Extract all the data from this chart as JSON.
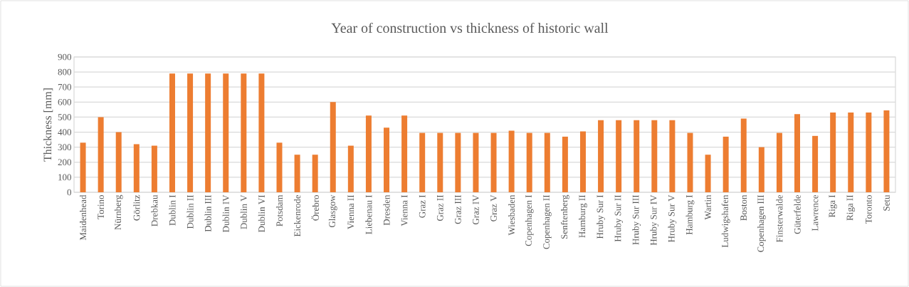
{
  "chart_data": {
    "type": "bar",
    "title": "Year of construction  vs thickness of historic wall",
    "ylabel": "Thickness [mm]",
    "categories": [
      "Maidenhead",
      "Torino",
      "Nürnberg",
      "Görlitz",
      "Drebkau",
      "Dublin I",
      "Dublin II",
      "Dublin III",
      "Dublin IV",
      "Dublin V",
      "Dublin VI",
      "Potsdam",
      "Eickenrode",
      "Örebro",
      "Glasgow",
      "Vienna II",
      "Liebenau I",
      "Dresden",
      "Vienna I",
      "Graz I",
      "Graz II",
      "Graz III",
      "Graz IV",
      "Graz V",
      "Wiesbaden",
      "Copenhagen I",
      "Copenhagen II",
      "Senftenberg",
      "Hamburg II",
      "Hruby Sur I",
      "Hruby Sur II",
      "Hruby Sur III",
      "Hruby Sur IV",
      "Hruby Sur V",
      "Hamburg I",
      "Wartin",
      "Ludwigshafen",
      "Boston",
      "Copenhagen III",
      "Finsterwalde",
      "Güterfelde",
      "Lawrence",
      "Riga I",
      "Riga II",
      "Toronto",
      "Setu"
    ],
    "values": [
      330,
      500,
      400,
      320,
      310,
      790,
      790,
      790,
      790,
      790,
      790,
      330,
      250,
      250,
      600,
      310,
      510,
      430,
      510,
      395,
      395,
      395,
      395,
      395,
      410,
      395,
      395,
      370,
      405,
      480,
      480,
      480,
      480,
      480,
      395,
      250,
      370,
      490,
      300,
      395,
      520,
      375,
      530,
      530,
      530,
      545
    ],
    "color": "#ed7d31",
    "ylim": [
      0,
      900
    ],
    "yticks": [
      0,
      100,
      200,
      300,
      400,
      500,
      600,
      700,
      800,
      900
    ],
    "grid": "y"
  }
}
